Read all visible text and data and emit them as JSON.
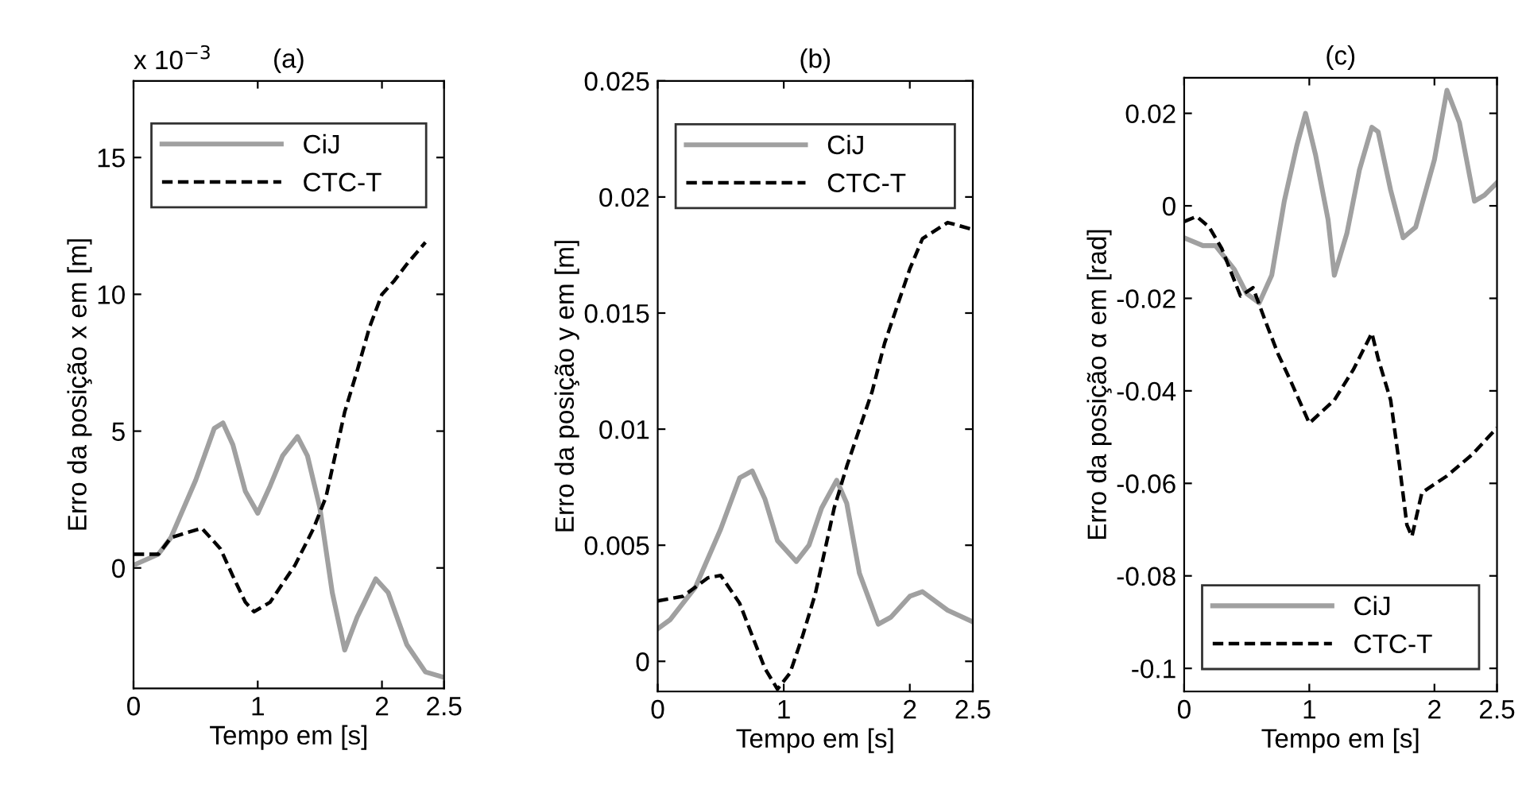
{
  "chart_data": [
    {
      "type": "line",
      "title": "(a)",
      "xlabel": "Tempo em [s]",
      "ylabel": "Erro da posição x em [m]",
      "annotations": [
        "x 10$^{−3}$"
      ],
      "xlim": [
        0,
        2.5
      ],
      "xticks": [
        0,
        1,
        2,
        2.5
      ],
      "ylim": [
        -4.4,
        17.8
      ],
      "yticks": [
        0,
        5,
        10,
        15
      ],
      "legend": "top",
      "grid": false,
      "series": [
        {
          "name": "CiJ",
          "color": "#a0a0a0",
          "line_style": "solid",
          "x": [
            0,
            0.2,
            0.3,
            0.5,
            0.65,
            0.72,
            0.8,
            0.9,
            1.0,
            1.1,
            1.2,
            1.32,
            1.4,
            1.5,
            1.6,
            1.7,
            1.8,
            1.95,
            2.05,
            2.2,
            2.35,
            2.5
          ],
          "values": [
            0.1,
            0.5,
            1.1,
            3.2,
            5.1,
            5.3,
            4.5,
            2.8,
            2.0,
            3.0,
            4.1,
            4.8,
            4.1,
            2.2,
            -0.9,
            -3.0,
            -1.8,
            -0.4,
            -0.9,
            -2.8,
            -3.8,
            -4.0
          ]
        },
        {
          "name": "CTC-T",
          "color": "#000000",
          "line_style": "dashed",
          "x": [
            0,
            0.2,
            0.3,
            0.4,
            0.55,
            0.7,
            0.8,
            0.9,
            0.97,
            1.1,
            1.3,
            1.45,
            1.55,
            1.7,
            1.8,
            1.9,
            2.0,
            2.1,
            2.2,
            2.35
          ],
          "values": [
            0.5,
            0.5,
            1.1,
            1.25,
            1.45,
            0.7,
            -0.3,
            -1.25,
            -1.6,
            -1.25,
            0.1,
            1.45,
            2.6,
            5.7,
            7.2,
            8.8,
            10.0,
            10.5,
            11.1,
            11.9
          ]
        }
      ]
    },
    {
      "type": "line",
      "title": "(b)",
      "xlabel": "Tempo em [s]",
      "ylabel": "Erro da posição y em [m]",
      "xlim": [
        0,
        2.5
      ],
      "xticks": [
        0,
        1,
        2,
        2.5
      ],
      "ylim": [
        -0.0013,
        0.025
      ],
      "yticks": [
        0,
        0.005,
        0.01,
        0.015,
        0.02,
        0.025
      ],
      "legend": "top",
      "grid": false,
      "series": [
        {
          "name": "CiJ",
          "color": "#a0a0a0",
          "line_style": "solid",
          "x": [
            0,
            0.1,
            0.3,
            0.5,
            0.65,
            0.75,
            0.85,
            0.95,
            1.1,
            1.2,
            1.3,
            1.42,
            1.5,
            1.6,
            1.75,
            1.85,
            2.0,
            2.1,
            2.3,
            2.5
          ],
          "values": [
            0.0014,
            0.0018,
            0.0032,
            0.0057,
            0.0079,
            0.0082,
            0.007,
            0.0052,
            0.0043,
            0.005,
            0.0066,
            0.0078,
            0.0068,
            0.0038,
            0.0016,
            0.0019,
            0.0028,
            0.003,
            0.0022,
            0.0017
          ]
        },
        {
          "name": "CTC-T",
          "color": "#000000",
          "line_style": "dashed",
          "x": [
            0,
            0.2,
            0.4,
            0.5,
            0.65,
            0.75,
            0.85,
            0.95,
            1.05,
            1.15,
            1.25,
            1.4,
            1.5,
            1.6,
            1.7,
            1.8,
            1.9,
            2.0,
            2.1,
            2.3,
            2.5
          ],
          "values": [
            0.0026,
            0.0028,
            0.0036,
            0.0037,
            0.0025,
            0.0011,
            -0.0003,
            -0.0012,
            -0.0005,
            0.0011,
            0.0029,
            0.0066,
            0.0084,
            0.01,
            0.0116,
            0.0137,
            0.0153,
            0.0169,
            0.0182,
            0.0189,
            0.0186
          ]
        }
      ]
    },
    {
      "type": "line",
      "title": "(c)",
      "xlabel": "Tempo em [s]",
      "ylabel": "Erro da posição α em [rad]",
      "xlim": [
        0,
        2.5
      ],
      "xticks": [
        0,
        1,
        2,
        2.5
      ],
      "ylim": [
        -0.105,
        0.0277
      ],
      "yticks": [
        -0.1,
        -0.08,
        -0.06,
        -0.04,
        -0.02,
        0,
        0.02
      ],
      "legend": "bottom",
      "grid": false,
      "series": [
        {
          "name": "CiJ",
          "color": "#a0a0a0",
          "line_style": "solid",
          "x": [
            0,
            0.15,
            0.25,
            0.4,
            0.5,
            0.6,
            0.7,
            0.8,
            0.9,
            0.97,
            1.05,
            1.15,
            1.2,
            1.3,
            1.4,
            1.5,
            1.55,
            1.65,
            1.75,
            1.85,
            2.0,
            2.1,
            2.2,
            2.32,
            2.4,
            2.5
          ],
          "values": [
            -0.0069,
            -0.0086,
            -0.0086,
            -0.0137,
            -0.019,
            -0.021,
            -0.015,
            0.001,
            0.013,
            0.02,
            0.011,
            -0.003,
            -0.015,
            -0.006,
            0.0077,
            0.017,
            0.016,
            0.0034,
            -0.0069,
            -0.0046,
            0.01,
            0.025,
            0.018,
            0.001,
            0.0023,
            0.005
          ]
        },
        {
          "name": "CTC-T",
          "color": "#000000",
          "line_style": "dashed",
          "x": [
            0,
            0.1,
            0.2,
            0.3,
            0.45,
            0.55,
            0.65,
            0.75,
            0.85,
            1.0,
            1.2,
            1.35,
            1.5,
            1.55,
            1.65,
            1.72,
            1.78,
            1.82,
            1.9,
            2.1,
            2.3,
            2.5
          ],
          "values": [
            -0.0034,
            -0.0023,
            -0.0046,
            -0.0092,
            -0.0195,
            -0.0177,
            -0.025,
            -0.032,
            -0.0378,
            -0.047,
            -0.042,
            -0.0355,
            -0.0275,
            -0.033,
            -0.042,
            -0.056,
            -0.069,
            -0.0715,
            -0.062,
            -0.0584,
            -0.0538,
            -0.048
          ]
        }
      ]
    }
  ]
}
